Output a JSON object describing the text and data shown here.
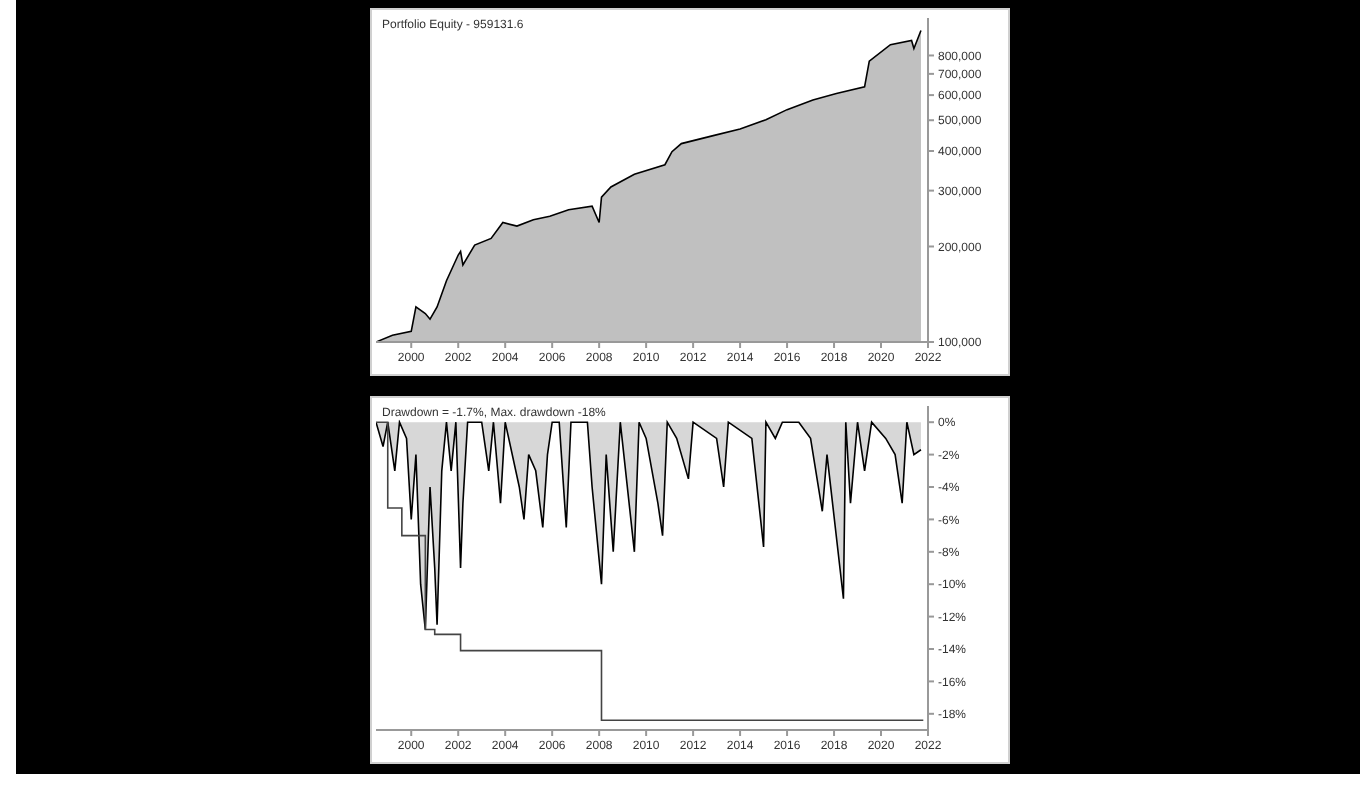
{
  "chart_data": [
    {
      "type": "area",
      "title": "Portfolio Equity - 959131.6",
      "log": "y",
      "grid": false,
      "legend": false,
      "xlim": [
        1998.5,
        2022
      ],
      "xticks": [
        2000,
        2002,
        2004,
        2006,
        2008,
        2010,
        2012,
        2014,
        2016,
        2018,
        2020,
        2022
      ],
      "ylim": [
        100000,
        1050000
      ],
      "yticks": [
        {
          "value": 100000,
          "label": "100,000"
        },
        {
          "value": 200000,
          "label": "200,000"
        },
        {
          "value": 300000,
          "label": "300,000"
        },
        {
          "value": 400000,
          "label": "400,000"
        },
        {
          "value": 500000,
          "label": "500,000"
        },
        {
          "value": 600000,
          "label": "600,000"
        },
        {
          "value": 700000,
          "label": "700,000"
        },
        {
          "value": 800000,
          "label": "800,000"
        }
      ],
      "series": [
        {
          "type": "area",
          "color": "#c0c0c0",
          "x": [
            1998.5,
            1999.2,
            2000,
            2000.2,
            2000.6,
            2000.8,
            2001.1,
            2001.5,
            2002,
            2002.1,
            2002.2,
            2002.7,
            2003.4,
            2003.9,
            2004.5,
            2005.2,
            2005.9,
            2006.7,
            2007.7,
            2008,
            2008.1,
            2008.5,
            2009.5,
            2010.8,
            2011.1,
            2011.5,
            2012.9,
            2014,
            2015.1,
            2016,
            2017.1,
            2018.1,
            2019.3,
            2019.5,
            2020.4,
            2021.3,
            2021.4,
            2021.7
          ],
          "values": [
            100000,
            105000,
            108000,
            129000,
            123000,
            118000,
            129000,
            156000,
            188000,
            193000,
            175000,
            202000,
            212000,
            238000,
            232000,
            243000,
            249000,
            261000,
            268000,
            238000,
            286000,
            308000,
            338000,
            362000,
            398000,
            422000,
            448000,
            469000,
            502000,
            540000,
            579000,
            607000,
            637000,
            768000,
            865000,
            892000,
            842000,
            959000
          ]
        }
      ]
    },
    {
      "type": "area",
      "title": "Drawdown = -1.7%, Max. drawdown -18%",
      "grid": false,
      "legend": false,
      "xlim": [
        1998.5,
        2022
      ],
      "xticks": [
        2000,
        2002,
        2004,
        2006,
        2008,
        2010,
        2012,
        2014,
        2016,
        2018,
        2020,
        2022
      ],
      "ylim": [
        -19,
        1
      ],
      "yticks": [
        {
          "value": 0,
          "label": "0%"
        },
        {
          "value": -2,
          "label": "-2%"
        },
        {
          "value": -4,
          "label": "-4%"
        },
        {
          "value": -6,
          "label": "-6%"
        },
        {
          "value": -8,
          "label": "-8%"
        },
        {
          "value": -10,
          "label": "-10%"
        },
        {
          "value": -12,
          "label": "-12%"
        },
        {
          "value": -14,
          "label": "-14%"
        },
        {
          "value": -16,
          "label": "-16%"
        },
        {
          "value": -18,
          "label": "-18%"
        }
      ],
      "series": [
        {
          "type": "area",
          "color": "#8c8c8c",
          "x": [
            1998.5,
            1998.8,
            1999,
            1999.3,
            1999.5,
            1999.8,
            2000,
            2000.2,
            2000.4,
            2000.6,
            2000.8,
            2001,
            2001.1,
            2001.3,
            2001.5,
            2001.7,
            2001.9,
            2002.1,
            2002.2,
            2002.4,
            2003,
            2003.3,
            2003.5,
            2003.8,
            2004,
            2004.6,
            2004.8,
            2005,
            2005.3,
            2005.6,
            2005.8,
            2006,
            2006.3,
            2006.6,
            2006.8,
            2007.5,
            2007.7,
            2008.1,
            2008.3,
            2008.6,
            2008.9,
            2009.5,
            2009.7,
            2010,
            2010.5,
            2010.7,
            2010.9,
            2011.3,
            2011.8,
            2012,
            2013,
            2013.3,
            2013.5,
            2014.5,
            2015,
            2015.1,
            2015.5,
            2015.8,
            2016.5,
            2017,
            2017.5,
            2017.7,
            2018.4,
            2018.5,
            2018.7,
            2019,
            2019.3,
            2019.6,
            2020.2,
            2020.6,
            2020.9,
            2021.1,
            2021.4,
            2021.7
          ],
          "values": [
            0,
            -1.5,
            0,
            -3,
            0,
            -1,
            -6,
            -2,
            -10,
            -12.8,
            -4,
            -9,
            -12.5,
            -3,
            0,
            -3,
            0,
            -9,
            -5,
            0,
            0,
            -3,
            0,
            -5,
            0,
            -4,
            -6,
            -2,
            -3,
            -6.5,
            -2,
            0,
            0,
            -6.5,
            0,
            0,
            -4,
            -10,
            -2,
            -8,
            0,
            -8,
            0,
            -1,
            -5,
            -7,
            0,
            -1,
            -3.5,
            0,
            -1,
            -4,
            0,
            -1,
            -7.7,
            0,
            -1,
            0,
            0,
            -1,
            -5.5,
            -2,
            -10.9,
            0,
            -5,
            0,
            -3,
            0,
            -1,
            -2,
            -5,
            0,
            -2,
            -1.7
          ]
        },
        {
          "type": "step",
          "color": "#444444",
          "x": [
            1998.5,
            1999,
            1999.6,
            2000.6,
            2001,
            2002.1,
            2008.1,
            2021.8
          ],
          "values": [
            0,
            -5.3,
            -7,
            -12.8,
            -13.1,
            -14.1,
            -18.4,
            -18.4
          ]
        }
      ]
    }
  ]
}
